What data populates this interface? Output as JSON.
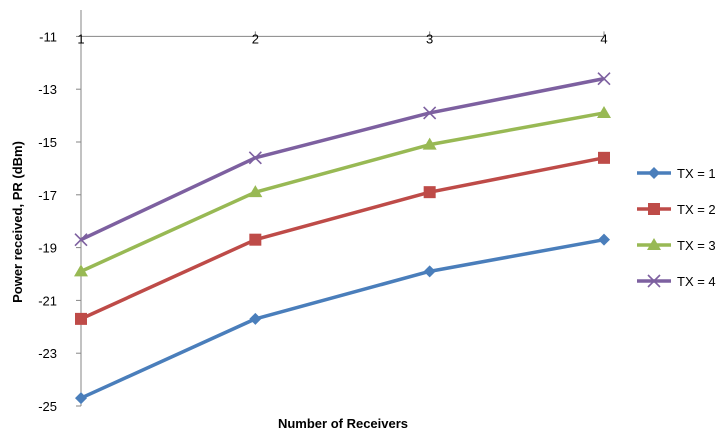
{
  "chart_data": {
    "type": "line",
    "title": "",
    "xlabel": "Number of Receivers",
    "ylabel": "Power received, PR (dBm)",
    "categories": [
      "1",
      "2",
      "3",
      "4"
    ],
    "ylim": [
      -25,
      -10
    ],
    "yticks": [
      -11,
      -13,
      -15,
      -17,
      -19,
      -21,
      -23,
      -25
    ],
    "x_axis_position": "top",
    "grid": false,
    "legend_position": "right",
    "series": [
      {
        "name": "TX = 1",
        "color": "#4A7EBB",
        "marker": "diamond",
        "values": [
          -24.7,
          -21.7,
          -19.9,
          -18.7
        ]
      },
      {
        "name": "TX = 2",
        "color": "#BE4B48",
        "marker": "square",
        "values": [
          -21.7,
          -18.7,
          -16.9,
          -15.6
        ]
      },
      {
        "name": "TX = 3",
        "color": "#98B954",
        "marker": "triangle",
        "values": [
          -19.9,
          -16.9,
          -15.1,
          -13.9
        ]
      },
      {
        "name": "TX = 4",
        "color": "#7D60A0",
        "marker": "x",
        "values": [
          -18.7,
          -15.6,
          -13.9,
          -12.6
        ]
      }
    ]
  }
}
